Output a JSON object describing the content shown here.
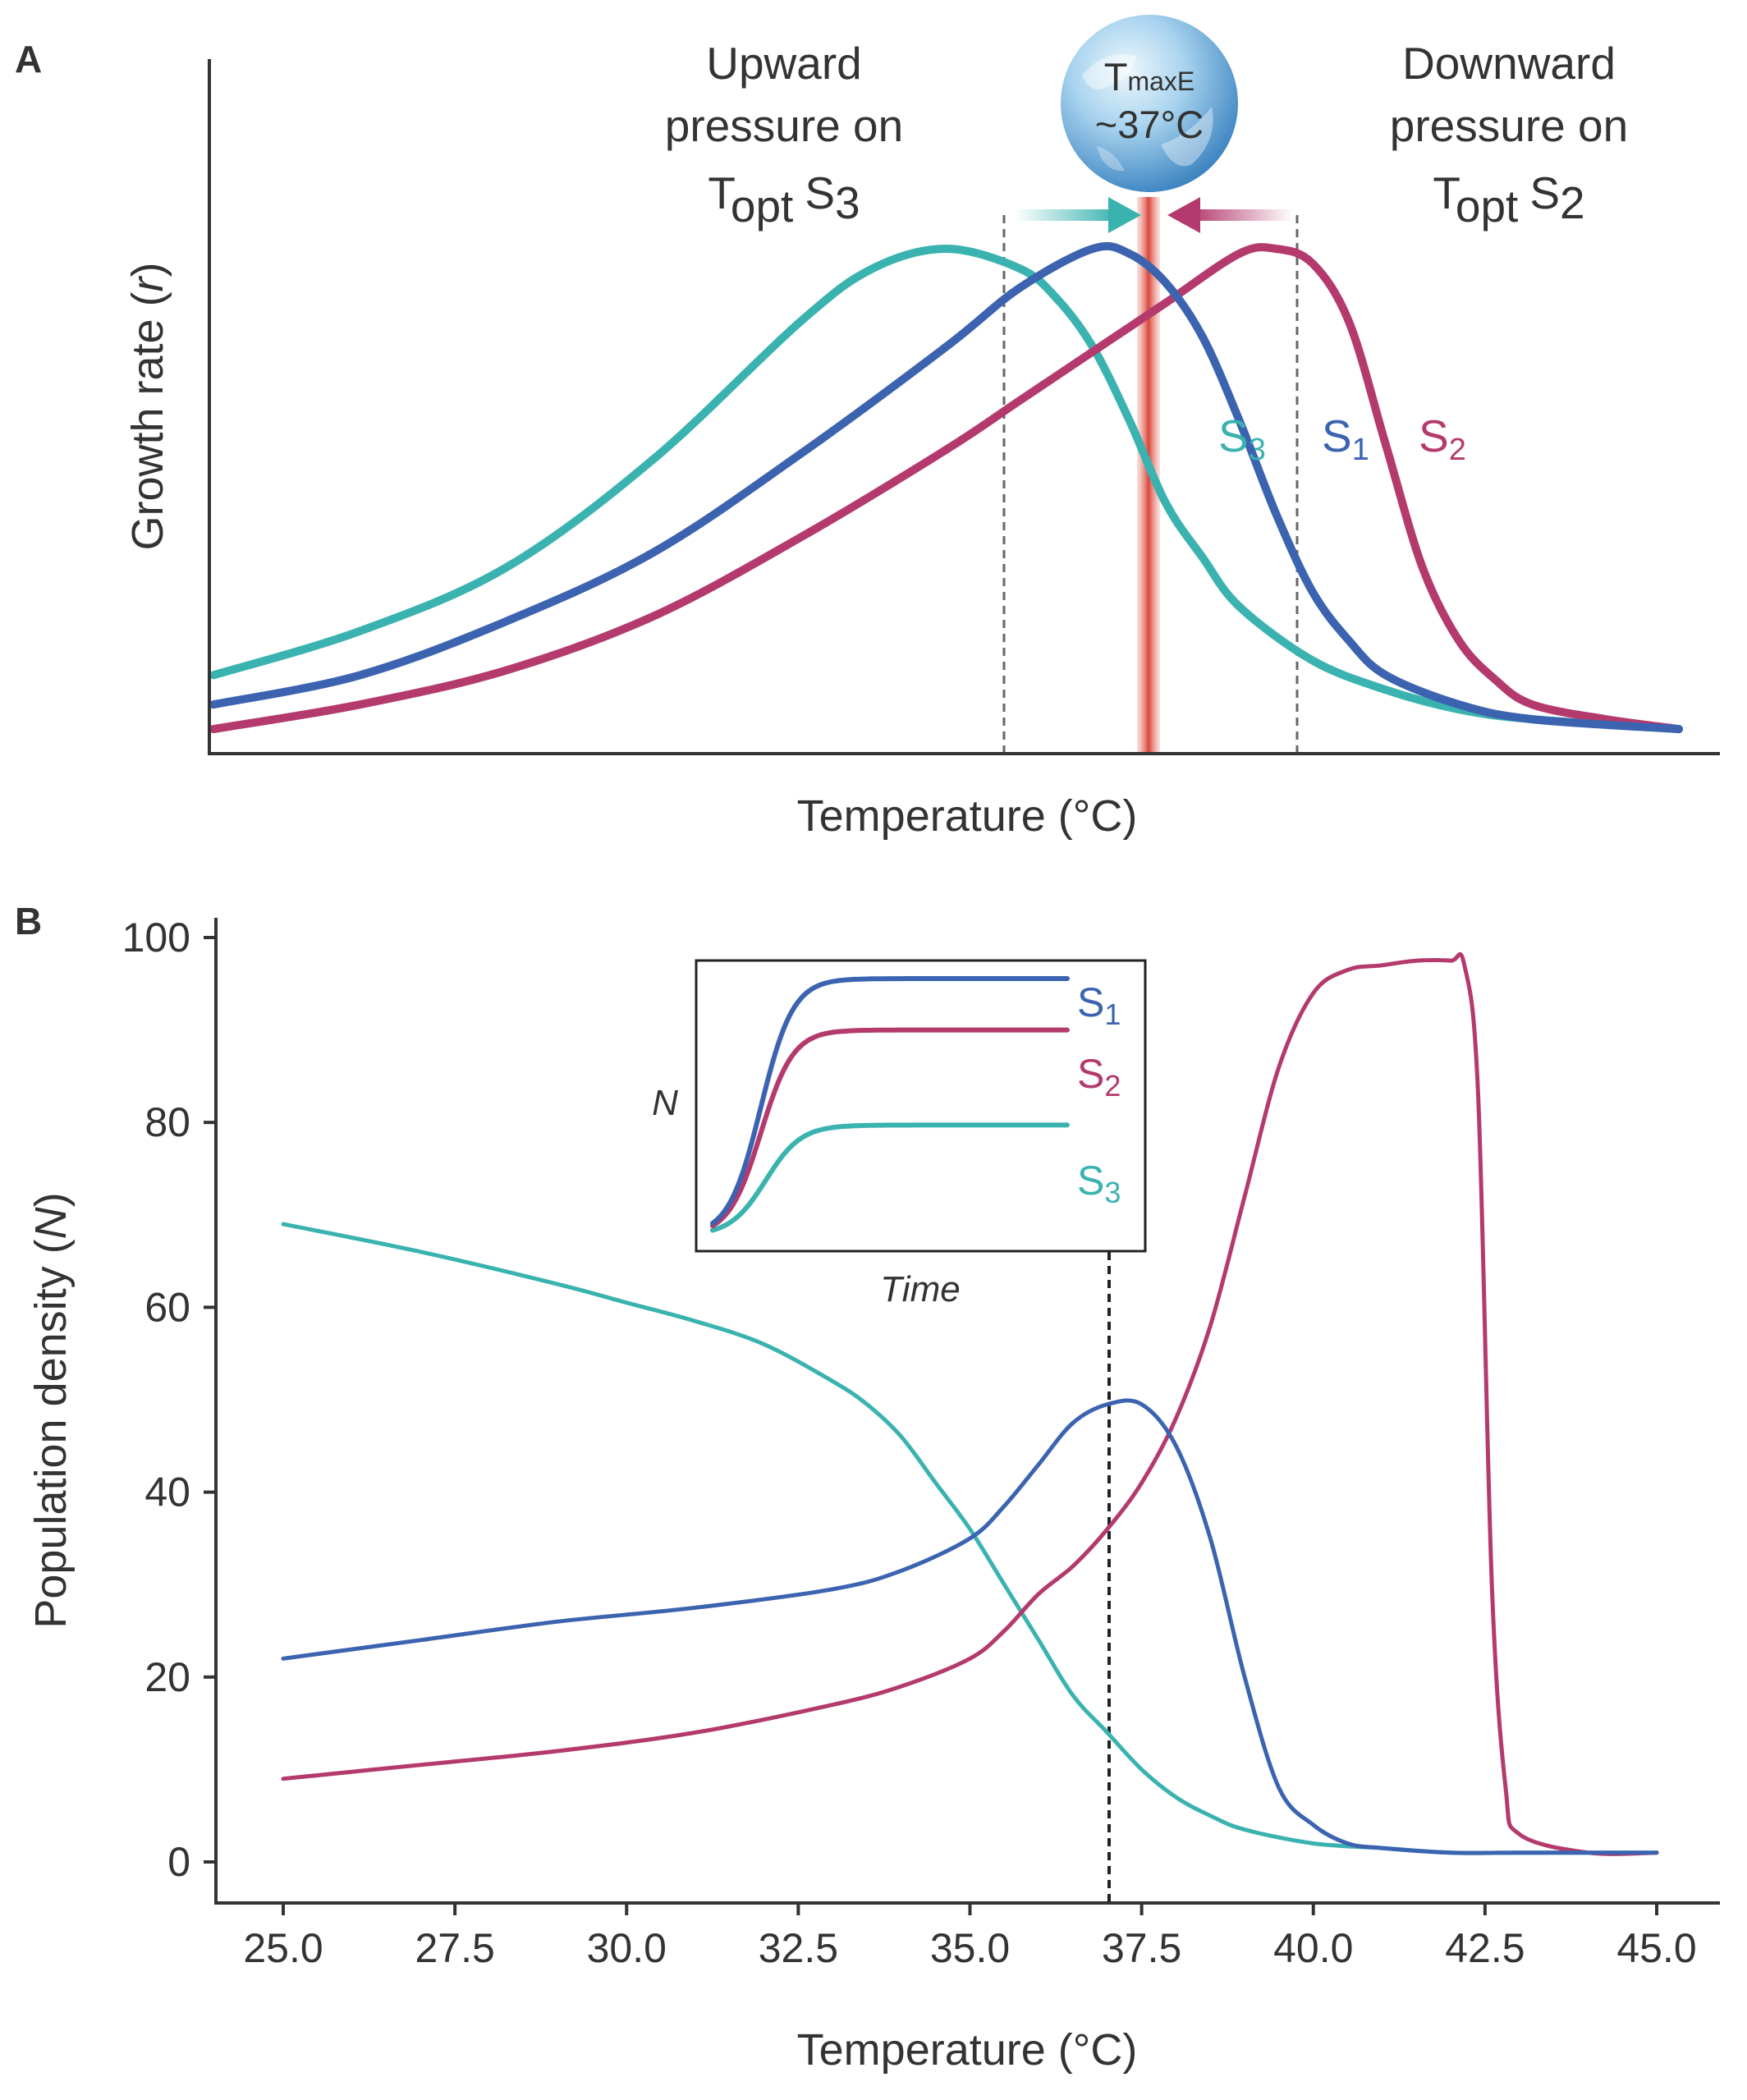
{
  "colors": {
    "S1": "#3b63b0",
    "S2": "#b43a6e",
    "S3": "#3ab3b0",
    "axis": "#333333",
    "tmax_line": "#e8685c"
  },
  "panel_a": {
    "letter": "A",
    "ylabel_main": "Growth rate (",
    "ylabel_var": "r",
    "ylabel_close": ")",
    "xlabel": "Temperature (°C)",
    "left_annot": {
      "line1": "Upward",
      "line2": "pressure on",
      "T": "T",
      "sub": "opt",
      "S": "S",
      "num": "3"
    },
    "right_annot": {
      "line1": "Downward",
      "line2": "pressure on",
      "T": "T",
      "sub": "opt",
      "S": "S",
      "num": "2"
    },
    "globe": {
      "T": "T",
      "sub": "maxE",
      "temp": "~37°C"
    },
    "icon": "earth-globe-icon"
  },
  "panel_b": {
    "letter": "B",
    "ylabel_main": "Population density (",
    "ylabel_var": "N",
    "ylabel_close": ")",
    "xlabel": "Temperature (°C)",
    "inset": {
      "ylabel": "N",
      "xlabel": "Time"
    }
  },
  "chart_data": [
    {
      "type": "line",
      "panel": "A",
      "title": "",
      "xlabel": "Temperature (°C)",
      "ylabel": "Growth rate (r)",
      "x_ticks": false,
      "y_ticks": false,
      "reference_line": {
        "label": "TmaxE ~37°C",
        "x": 37
      },
      "series": [
        {
          "name": "S1",
          "label_S": "S",
          "label_num": "1",
          "t_opt": 37,
          "x": [
            25,
            27,
            29,
            31,
            33,
            35,
            36,
            37,
            37.5,
            38,
            38.5,
            39,
            39.5,
            40,
            40.5,
            41,
            42,
            43,
            45
          ],
          "y": [
            0.07,
            0.13,
            0.24,
            0.38,
            0.58,
            0.8,
            0.92,
            1.0,
            0.99,
            0.93,
            0.82,
            0.65,
            0.46,
            0.3,
            0.2,
            0.13,
            0.07,
            0.04,
            0.02
          ]
        },
        {
          "name": "S2",
          "label_S": "S",
          "label_num": "2",
          "t_opt": 39,
          "x": [
            25,
            27,
            29,
            31,
            33,
            35,
            36,
            37,
            38,
            39,
            39.5,
            40,
            40.5,
            41,
            41.5,
            42,
            42.5,
            43,
            44,
            45
          ],
          "y": [
            0.02,
            0.07,
            0.14,
            0.25,
            0.41,
            0.59,
            0.69,
            0.79,
            0.89,
            0.99,
            1.0,
            0.97,
            0.85,
            0.6,
            0.35,
            0.2,
            0.12,
            0.07,
            0.04,
            0.02
          ]
        },
        {
          "name": "S3",
          "label_S": "S",
          "label_num": "3",
          "t_opt": 35,
          "x": [
            25,
            27,
            29,
            31,
            33,
            34,
            35,
            36,
            36.5,
            37,
            37.5,
            38,
            38.5,
            39,
            40,
            41,
            42,
            43,
            45
          ],
          "y": [
            0.13,
            0.22,
            0.35,
            0.57,
            0.85,
            0.96,
            1.0,
            0.96,
            0.9,
            0.8,
            0.65,
            0.48,
            0.37,
            0.27,
            0.16,
            0.1,
            0.06,
            0.04,
            0.02
          ]
        }
      ]
    },
    {
      "type": "line",
      "panel": "B",
      "title": "",
      "xlabel": "Temperature (°C)",
      "ylabel": "Population density (N)",
      "xlim": [
        25,
        45
      ],
      "ylim": [
        0,
        100
      ],
      "x_ticks": [
        "25.0",
        "27.5",
        "30.0",
        "32.5",
        "35.0",
        "37.5",
        "40.0",
        "42.5",
        "45.0"
      ],
      "y_ticks": [
        "0",
        "20",
        "40",
        "60",
        "80",
        "100"
      ],
      "reference_line": {
        "x": 37
      },
      "series": [
        {
          "name": "S1",
          "x": [
            25,
            27,
            29,
            31,
            33,
            34,
            35,
            35.5,
            36,
            36.5,
            37,
            37.5,
            38,
            38.5,
            39,
            39.5,
            40,
            40.5,
            41,
            42,
            43,
            44,
            45
          ],
          "y": [
            22,
            24,
            26,
            27.5,
            29.5,
            31.5,
            35,
            38.5,
            43,
            47.5,
            49.5,
            49.5,
            45,
            35,
            20,
            8,
            4,
            2,
            1.5,
            1,
            1,
            1,
            1
          ]
        },
        {
          "name": "S2",
          "x": [
            25,
            27,
            29,
            31,
            33,
            34,
            35,
            35.5,
            36,
            36.5,
            37,
            37.5,
            38,
            38.5,
            39,
            39.5,
            40,
            40.5,
            41,
            41.5,
            42,
            42.2,
            42.4,
            42.6,
            42.8,
            43,
            44,
            45
          ],
          "y": [
            9,
            10.5,
            12,
            14,
            17,
            19,
            22,
            25,
            29,
            32,
            36,
            41,
            48,
            58,
            72,
            86,
            94,
            96.5,
            97,
            97.5,
            97.5,
            97,
            83,
            30,
            8,
            3,
            1,
            1
          ]
        },
        {
          "name": "S3",
          "x": [
            25,
            27,
            29,
            30,
            31,
            32,
            33,
            33.5,
            34,
            34.5,
            35,
            35.5,
            36,
            36.5,
            37,
            37.5,
            38,
            38.5,
            39,
            40,
            41,
            42,
            43,
            45
          ],
          "y": [
            69,
            66,
            62.5,
            60.5,
            58.5,
            56,
            52,
            49.5,
            46,
            41,
            36,
            30,
            24,
            18,
            14,
            10,
            7,
            5,
            3.5,
            2,
            1.5,
            1,
            1,
            1
          ]
        }
      ]
    },
    {
      "type": "line",
      "panel": "B-inset",
      "title": "",
      "xlabel": "Time",
      "ylabel": "N",
      "x_ticks": false,
      "y_ticks": false,
      "series": [
        {
          "name": "S1",
          "label_S": "S",
          "label_num": "1",
          "asymptote": 1.0,
          "growth": 2.2
        },
        {
          "name": "S2",
          "label_S": "S",
          "label_num": "2",
          "asymptote": 0.8,
          "growth": 2.2
        },
        {
          "name": "S3",
          "label_S": "S",
          "label_num": "3",
          "asymptote": 0.43,
          "growth": 2.0
        }
      ]
    }
  ]
}
